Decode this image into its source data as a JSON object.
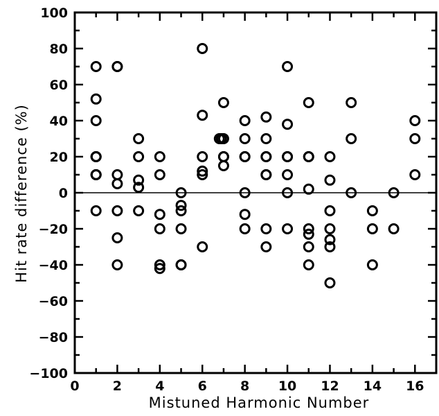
{
  "chart_data": {
    "type": "scatter",
    "title": "",
    "xlabel": "Mistuned Harmonic Number",
    "ylabel": "Hit rate difference (%)",
    "xlim": [
      0,
      17
    ],
    "ylim": [
      -100,
      100
    ],
    "xticks": [
      0,
      2,
      4,
      6,
      8,
      10,
      12,
      14,
      16
    ],
    "yticks": [
      -100,
      -80,
      -60,
      -40,
      -20,
      0,
      20,
      40,
      60,
      80,
      100
    ],
    "reference_line_y": 0,
    "marker": "open-circle",
    "points": [
      [
        1,
        70
      ],
      [
        1,
        52
      ],
      [
        1,
        40
      ],
      [
        1,
        20
      ],
      [
        1,
        20
      ],
      [
        1,
        20
      ],
      [
        1,
        10
      ],
      [
        1,
        10
      ],
      [
        1,
        10
      ],
      [
        1,
        -10
      ],
      [
        2,
        70
      ],
      [
        2,
        70
      ],
      [
        2,
        10
      ],
      [
        2,
        5
      ],
      [
        2,
        -10
      ],
      [
        2,
        -25
      ],
      [
        2,
        -40
      ],
      [
        3,
        30
      ],
      [
        3,
        20
      ],
      [
        3,
        7
      ],
      [
        3,
        3
      ],
      [
        3,
        -10
      ],
      [
        4,
        20
      ],
      [
        4,
        10
      ],
      [
        4,
        -12
      ],
      [
        4,
        -20
      ],
      [
        4,
        -40
      ],
      [
        4,
        -42
      ],
      [
        5,
        0
      ],
      [
        5,
        -7
      ],
      [
        5,
        -10
      ],
      [
        5,
        -20
      ],
      [
        5,
        -40
      ],
      [
        5,
        -40
      ],
      [
        6,
        80
      ],
      [
        6,
        43
      ],
      [
        6,
        20
      ],
      [
        6,
        12
      ],
      [
        6,
        10
      ],
      [
        6,
        -30
      ],
      [
        6.8,
        30
      ],
      [
        6.9,
        30
      ],
      [
        7,
        50
      ],
      [
        7,
        30
      ],
      [
        7,
        20
      ],
      [
        7,
        20
      ],
      [
        7,
        15
      ],
      [
        8,
        40
      ],
      [
        8,
        30
      ],
      [
        8,
        20
      ],
      [
        8,
        20
      ],
      [
        8,
        0
      ],
      [
        8,
        -12
      ],
      [
        8,
        -20
      ],
      [
        9,
        42
      ],
      [
        9,
        30
      ],
      [
        9,
        20
      ],
      [
        9,
        20
      ],
      [
        9,
        10
      ],
      [
        9,
        10
      ],
      [
        9,
        -20
      ],
      [
        9,
        -30
      ],
      [
        10,
        70
      ],
      [
        10,
        38
      ],
      [
        10,
        20
      ],
      [
        10,
        20
      ],
      [
        10,
        10
      ],
      [
        10,
        0
      ],
      [
        10,
        -20
      ],
      [
        11,
        50
      ],
      [
        11,
        20
      ],
      [
        11,
        20
      ],
      [
        11,
        2
      ],
      [
        11,
        -20
      ],
      [
        11,
        -23
      ],
      [
        11,
        -30
      ],
      [
        11,
        -40
      ],
      [
        12,
        20
      ],
      [
        12,
        7
      ],
      [
        12,
        -10
      ],
      [
        12,
        -20
      ],
      [
        12,
        -26
      ],
      [
        12,
        -30
      ],
      [
        12,
        -50
      ],
      [
        13,
        50
      ],
      [
        13,
        30
      ],
      [
        13,
        0
      ],
      [
        14,
        -10
      ],
      [
        14,
        -20
      ],
      [
        14,
        -40
      ],
      [
        15,
        0
      ],
      [
        15,
        -20
      ],
      [
        16,
        40
      ],
      [
        16,
        30
      ],
      [
        16,
        10
      ]
    ]
  }
}
